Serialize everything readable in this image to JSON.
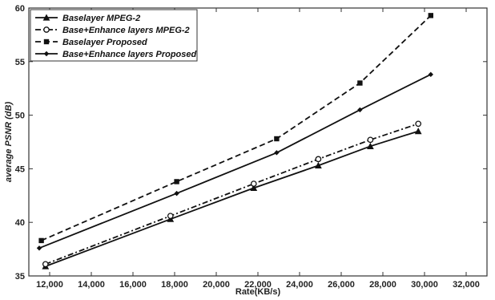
{
  "chart_data": {
    "type": "line",
    "title": "",
    "xlabel": "Rate(KB/s)",
    "ylabel": "average PSNR (dB)",
    "xlim": [
      11000,
      33000
    ],
    "ylim": [
      35,
      60
    ],
    "xticks": [
      12000,
      14000,
      16000,
      18000,
      20000,
      22000,
      24000,
      26000,
      28000,
      30000,
      32000
    ],
    "xtick_labels": [
      "12,000",
      "14,000",
      "16,000",
      "18,000",
      "20,000",
      "22,000",
      "24,000",
      "26,000",
      "28,000",
      "30,000",
      "32,000"
    ],
    "yticks": [
      35,
      40,
      45,
      50,
      55,
      60
    ],
    "ytick_labels": [
      "35",
      "40",
      "45",
      "50",
      "55",
      "60"
    ],
    "grid": false,
    "legend_position": "top-left",
    "series": [
      {
        "name": "Baselayer MPEG-2",
        "line_style": "solid",
        "marker": "triangle",
        "color": "#111111",
        "points": [
          [
            11800,
            35.9
          ],
          [
            17800,
            40.3
          ],
          [
            21800,
            43.2
          ],
          [
            24900,
            45.3
          ],
          [
            27400,
            47.1
          ],
          [
            29700,
            48.5
          ]
        ]
      },
      {
        "name": "Base+Enhance layers MPEG-2",
        "line_style": "dashdot",
        "marker": "circle-open",
        "color": "#111111",
        "points": [
          [
            11800,
            36.1
          ],
          [
            17800,
            40.6
          ],
          [
            21800,
            43.6
          ],
          [
            24900,
            45.9
          ],
          [
            27400,
            47.7
          ],
          [
            29700,
            49.2
          ]
        ]
      },
      {
        "name": "Baselayer Proposed",
        "line_style": "dashed",
        "marker": "square",
        "color": "#111111",
        "points": [
          [
            11600,
            38.3
          ],
          [
            18100,
            43.8
          ],
          [
            22900,
            47.8
          ],
          [
            26900,
            53.0
          ],
          [
            30300,
            59.3
          ]
        ]
      },
      {
        "name": "Base+Enhance layers Proposed",
        "line_style": "solid",
        "marker": "diamond",
        "color": "#111111",
        "points": [
          [
            11500,
            37.6
          ],
          [
            18100,
            42.7
          ],
          [
            22900,
            46.5
          ],
          [
            26900,
            50.5
          ],
          [
            30300,
            53.8
          ]
        ]
      }
    ]
  }
}
